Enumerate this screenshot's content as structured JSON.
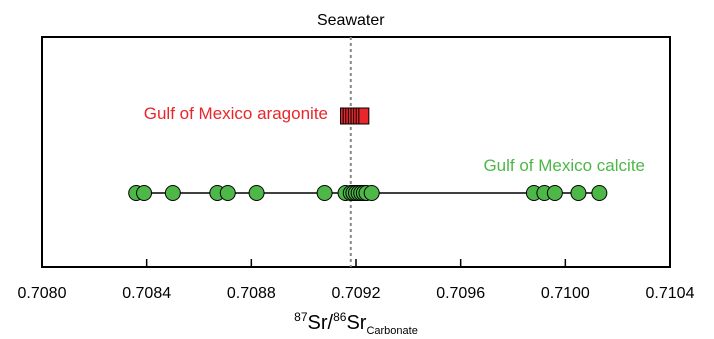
{
  "chart_data": {
    "type": "scatter",
    "xlabel_parts": {
      "sup1": "87",
      "base1": "Sr/",
      "sup2": "86",
      "base2": "Sr",
      "sub": "Carbonate"
    },
    "xlim": [
      0.708,
      0.7104
    ],
    "x_ticks": [
      "0.7080",
      "0.7084",
      "0.7088",
      "0.7092",
      "0.7096",
      "0.7100",
      "0.7104"
    ],
    "reference_line": {
      "label": "Seawater",
      "x": 0.70918,
      "style": "dotted",
      "color": "#888888"
    },
    "grid": false,
    "series": [
      {
        "name": "Gulf of Mexico aragonite",
        "marker": "square",
        "color": "#e8262b",
        "x": [
          0.70916,
          0.70917,
          0.70918,
          0.70919,
          0.7092,
          0.70921,
          0.70922,
          0.70923
        ]
      },
      {
        "name": "Gulf of Mexico calcite",
        "marker": "circle",
        "color": "#4db848",
        "connected": true,
        "x": [
          0.70836,
          0.70839,
          0.7085,
          0.70867,
          0.70871,
          0.70882,
          0.70908,
          0.70916,
          0.70918,
          0.70919,
          0.7092,
          0.70921,
          0.70922,
          0.70923,
          0.70924,
          0.70926,
          0.70988,
          0.70992,
          0.70996,
          0.71005,
          0.71013
        ]
      }
    ]
  }
}
